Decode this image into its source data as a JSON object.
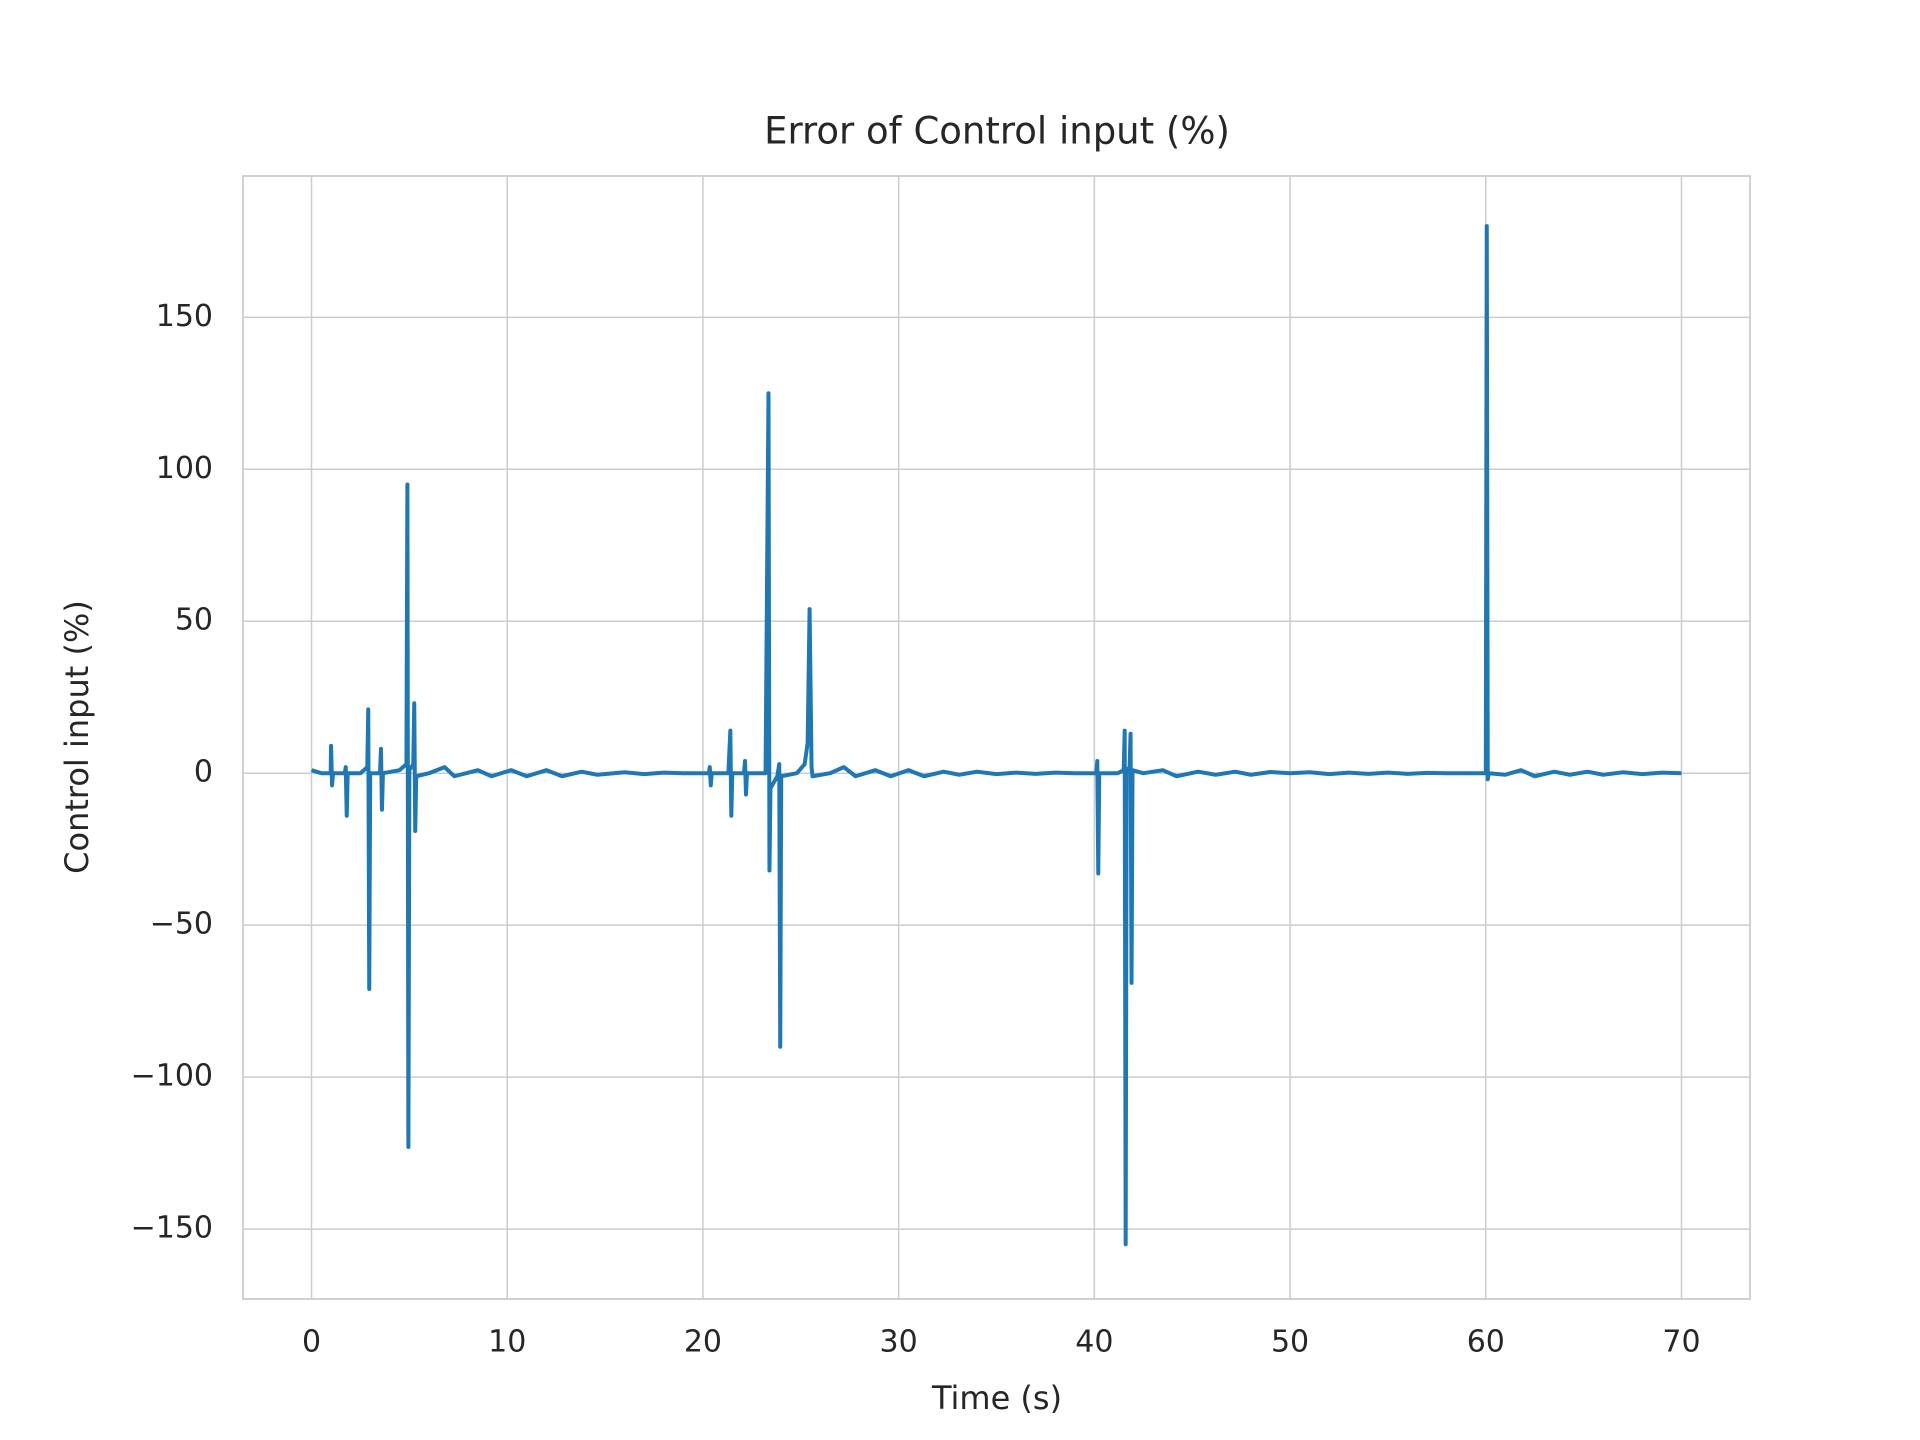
{
  "chart_data": {
    "type": "line",
    "title": "Error of Control input (%)",
    "x_label": "Time (s)",
    "y_label": "Control input (%)",
    "color": "#1f77b4",
    "grid": true,
    "x": [
      0,
      0.5,
      0.98,
      1.0,
      1.05,
      1.1,
      1.7,
      1.75,
      1.8,
      1.85,
      2.5,
      2.85,
      2.9,
      2.95,
      3.0,
      3.5,
      3.55,
      3.6,
      3.65,
      4.5,
      4.85,
      4.9,
      4.95,
      5.0,
      5.2,
      5.25,
      5.3,
      5.35,
      6.0,
      6.8,
      7.3,
      8.5,
      9.2,
      10.2,
      11.0,
      12.0,
      12.8,
      13.8,
      14.6,
      16,
      17,
      18,
      19,
      20.3,
      20.35,
      20.4,
      20.45,
      21.3,
      21.4,
      21.45,
      21.5,
      22.1,
      22.15,
      22.2,
      22.25,
      23.2,
      23.35,
      23.4,
      23.45,
      23.8,
      23.9,
      23.95,
      24.0,
      24.8,
      25.2,
      25.35,
      25.45,
      25.55,
      25.6,
      26.5,
      27.2,
      27.8,
      28.8,
      29.6,
      30.5,
      31.3,
      32.3,
      33.1,
      34,
      35,
      36,
      37,
      38,
      39,
      40.1,
      40.15,
      40.2,
      40.25,
      41.2,
      41.5,
      41.55,
      41.6,
      41.65,
      41.8,
      41.85,
      41.9,
      41.95,
      42.5,
      43.5,
      44.2,
      45.3,
      46.2,
      47.2,
      48,
      49,
      50,
      51,
      52,
      53,
      54,
      55,
      56,
      57,
      58,
      60.0,
      60.05,
      60.1,
      60.15,
      61,
      61.8,
      62.5,
      63.5,
      64.3,
      65.2,
      66,
      67,
      68,
      69,
      70
    ],
    "values": [
      1,
      0,
      0,
      9,
      -4,
      0,
      0,
      2,
      -14,
      0,
      0,
      2,
      21,
      -71,
      0,
      0,
      8,
      -12,
      0,
      1,
      3,
      95,
      -123,
      1,
      3,
      23,
      -19,
      -1,
      0,
      2,
      -1,
      1,
      -1,
      1,
      -1,
      1,
      -1,
      0.5,
      -0.5,
      0.3,
      -0.3,
      0.2,
      0,
      0,
      2,
      -4,
      0,
      0,
      14,
      -14,
      0,
      0,
      4,
      -7,
      0,
      0,
      125,
      -32,
      -5,
      -1,
      3,
      -90,
      -1,
      0,
      3,
      10,
      54,
      2,
      -1,
      0,
      2,
      -1,
      1,
      -1,
      1,
      -1,
      0.5,
      -0.5,
      0.5,
      -0.3,
      0.2,
      -0.2,
      0.2,
      0,
      0,
      4,
      -33,
      0,
      0,
      1,
      14,
      -155,
      1,
      2,
      13,
      -69,
      1,
      0,
      1,
      -1,
      0.5,
      -0.5,
      0.5,
      -0.5,
      0.4,
      0,
      0.3,
      -0.3,
      0.2,
      -0.2,
      0.2,
      -0.2,
      0.1,
      0,
      0,
      180,
      -2,
      0,
      -0.5,
      1,
      -1,
      0.5,
      -0.5,
      0.5,
      -0.5,
      0.3,
      -0.3,
      0.2,
      0
    ],
    "xlim": [
      -3.5,
      73.5
    ],
    "xticks": [
      0,
      10,
      20,
      30,
      40,
      50,
      60,
      70
    ],
    "ylim": [
      -173,
      196.5
    ],
    "yticks": [
      {
        "value": -150,
        "label": "−150"
      },
      {
        "value": -100,
        "label": "−100"
      },
      {
        "value": -50,
        "label": "−50"
      },
      0,
      50,
      100,
      150
    ]
  }
}
